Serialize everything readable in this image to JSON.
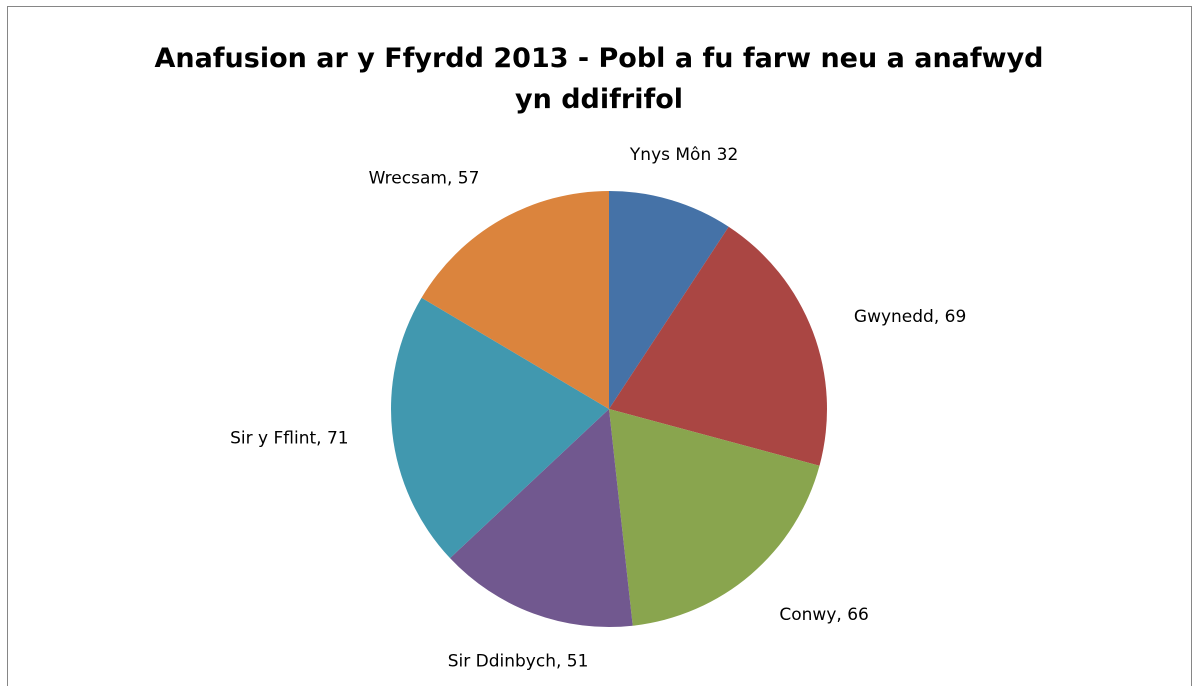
{
  "chart_data": {
    "type": "pie",
    "title_lines": [
      "Anafusion ar y Ffyrdd 2013 - Pobl a fu farw neu a anafwyd",
      "yn ddifrifol"
    ],
    "slices": [
      {
        "label": "Ynys Môn",
        "value": 32,
        "data_label": "Ynys Môn 32",
        "color": "#4572A7"
      },
      {
        "label": "Gwynedd",
        "value": 69,
        "data_label": "Gwynedd, 69",
        "color": "#AA4643"
      },
      {
        "label": "Conwy",
        "value": 66,
        "data_label": "Conwy, 66",
        "color": "#89A54E"
      },
      {
        "label": "Sir Ddinbych",
        "value": 51,
        "data_label": "Sir Ddinbych, 51",
        "color": "#71588F"
      },
      {
        "label": "Sir y Fflint",
        "value": 71,
        "data_label": "Sir y Fflint, 71",
        "color": "#4198AF"
      },
      {
        "label": "Wrecsam",
        "value": 57,
        "data_label": "Wrecsam, 57",
        "color": "#DB843D"
      }
    ],
    "start_angle": "12 o'clock",
    "direction": "clockwise",
    "legend": "none",
    "data_labels": "outside end"
  }
}
